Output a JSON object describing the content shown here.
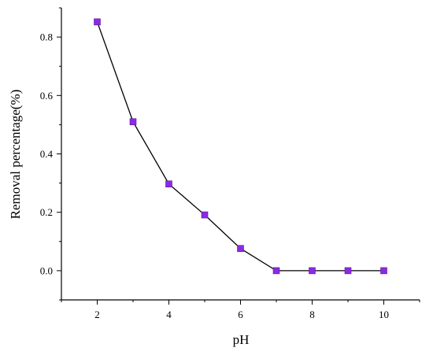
{
  "chart_data": {
    "type": "line",
    "xlabel": "pH",
    "ylabel": "Removal percentage(%)",
    "xlim": [
      1,
      11
    ],
    "ylim": [
      -0.1,
      0.9
    ],
    "xticks": [
      2,
      4,
      6,
      8,
      10
    ],
    "yticks": [
      0.0,
      0.2,
      0.4,
      0.6,
      0.8
    ],
    "xtick_labels": [
      "2",
      "4",
      "6",
      "8",
      "10"
    ],
    "ytick_labels": [
      "0.0",
      "0.2",
      "0.4",
      "0.6",
      "0.8"
    ],
    "grid": false,
    "series": [
      {
        "x": [
          2,
          3,
          4,
          5,
          6,
          7,
          8,
          9,
          10
        ],
        "values": [
          0.852,
          0.51,
          0.297,
          0.191,
          0.076,
          0.0,
          0.0,
          0.0,
          0.0
        ],
        "marker": "square",
        "marker_color": "#8a2be2",
        "line_color": "#000000"
      }
    ]
  }
}
